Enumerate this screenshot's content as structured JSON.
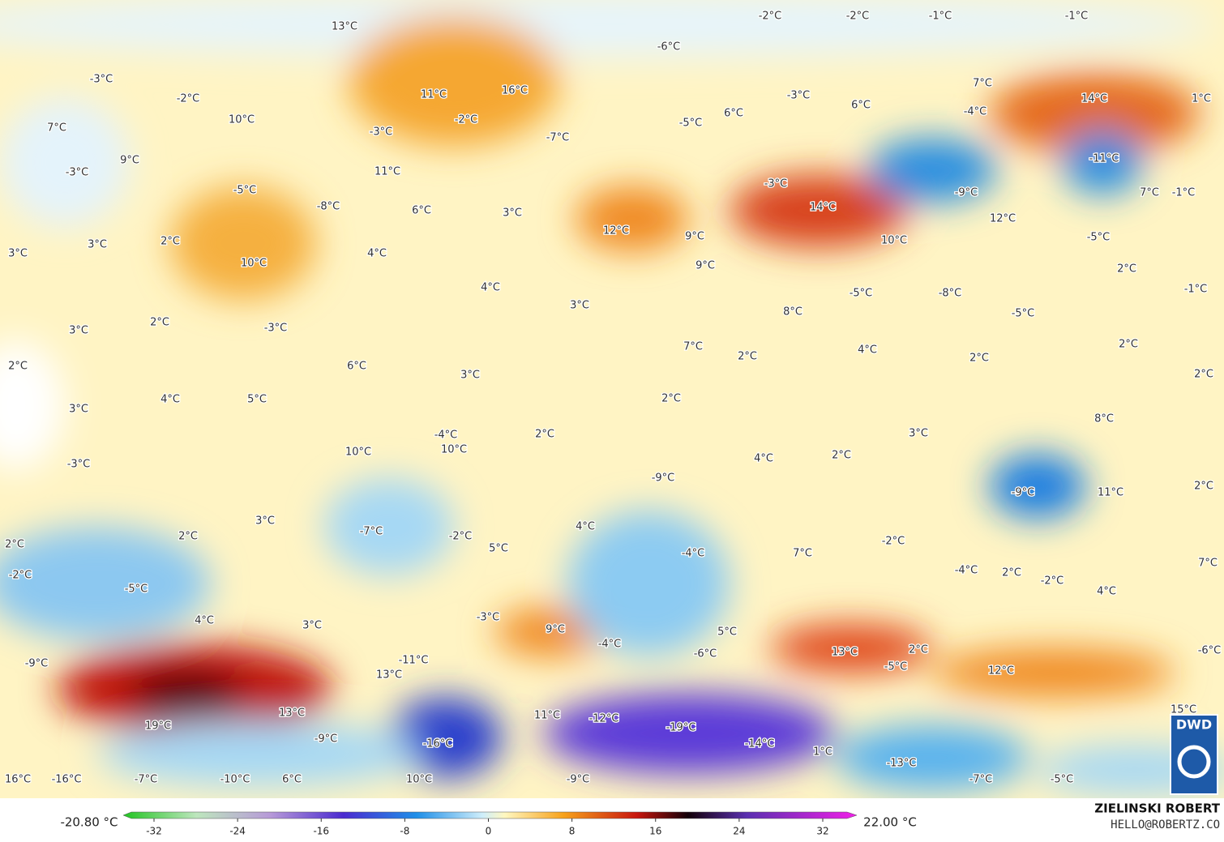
{
  "map": {
    "labels": [
      "13°C",
      "-2°C",
      "-2°C",
      "-1°C",
      "-1°C",
      "-6°C",
      "-3°C",
      "-2°C",
      "11°C",
      "16°C",
      "7°C",
      "-3°C",
      "6°C",
      "-4°C",
      "14°C",
      "1°C",
      "7°C",
      "10°C",
      "-3°C",
      "-2°C",
      "6°C",
      "-5°C",
      "-7°C",
      "9°C",
      "-3°C",
      "11°C",
      "-11°C",
      "-5°C",
      "-3°C",
      "-9°C",
      "7°C",
      "-1°C",
      "-8°C",
      "6°C",
      "3°C",
      "14°C",
      "12°C",
      "3°C",
      "2°C",
      "3°C",
      "10°C",
      "4°C",
      "12°C",
      "9°C",
      "10°C",
      "-5°C",
      "9°C",
      "2°C",
      "4°C",
      "-1°C",
      "-5°C",
      "-8°C",
      "3°C",
      "8°C",
      "-5°C",
      "3°C",
      "2°C",
      "-3°C",
      "7°C",
      "4°C",
      "2°C",
      "2°C",
      "2°C",
      "2°C",
      "6°C",
      "2°C",
      "3°C",
      "4°C",
      "5°C",
      "3°C",
      "2°C",
      "-4°C",
      "10°C",
      "10°C",
      "2°C",
      "3°C",
      "8°C",
      "2°C",
      "4°C",
      "-3°C",
      "-9°C",
      "-9°C",
      "11°C",
      "2°C",
      "3°C",
      "-7°C",
      "-2°C",
      "4°C",
      "2°C",
      "2°C",
      "-2°C",
      "5°C",
      "-4°C",
      "7°C",
      "-2°C",
      "-5°C",
      "-4°C",
      "2°C",
      "-2°C",
      "7°C",
      "4°C",
      "4°C",
      "3°C",
      "-3°C",
      "9°C",
      "5°C",
      "-4°C",
      "-6°C",
      "13°C",
      "2°C",
      "-9°C",
      "-11°C",
      "13°C",
      "-5°C",
      "12°C",
      "-6°C",
      "13°C",
      "19°C",
      "11°C",
      "-12°C",
      "-19°C",
      "15°C",
      "-9°C",
      "-16°C",
      "-14°C",
      "1°C",
      "-13°C",
      "16°C",
      "-16°C",
      "-7°C",
      "-10°C",
      "6°C",
      "10°C",
      "-9°C",
      "-7°C",
      "-5°C"
    ],
    "logo": "DWD"
  },
  "legend": {
    "min_label": "-20.80 °C",
    "max_label": "22.00 °C",
    "ticks": [
      -32,
      -24,
      -16,
      -8,
      0,
      8,
      16,
      24,
      32
    ]
  },
  "credit": {
    "name": "ZIELINSKI ROBERT",
    "contact": "HELLO@ROBERTZ.CO"
  }
}
